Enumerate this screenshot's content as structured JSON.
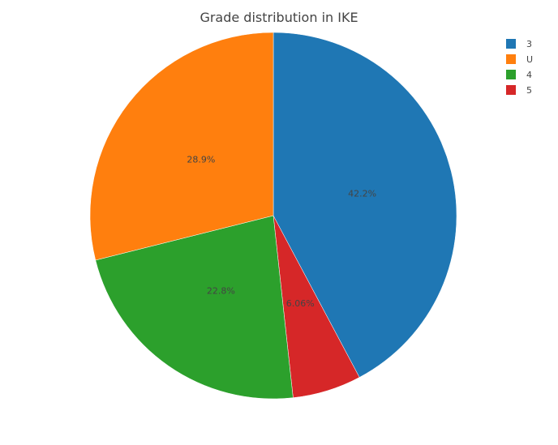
{
  "chart_data": {
    "type": "pie",
    "title": "Grade distribution in IKE",
    "direction": "clockwise",
    "start": "top",
    "legend_position": "top-right",
    "slices": [
      {
        "label": "3",
        "percent": 42.2,
        "display": "42.2%",
        "color": "#1f77b4"
      },
      {
        "label": "5",
        "percent": 6.06,
        "display": "6.06%",
        "color": "#d62728"
      },
      {
        "label": "4",
        "percent": 22.8,
        "display": "22.8%",
        "color": "#2ca02c"
      },
      {
        "label": "U",
        "percent": 28.9,
        "display": "28.9%",
        "color": "#ff7f0e"
      }
    ],
    "legend_order": [
      "3",
      "U",
      "4",
      "5"
    ]
  }
}
